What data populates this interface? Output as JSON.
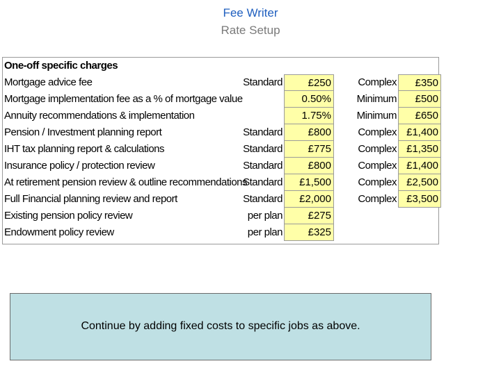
{
  "header": {
    "title": "Fee Writer",
    "subtitle": "Rate Setup"
  },
  "sheet": {
    "heading": "One-off specific charges",
    "rows": [
      {
        "label": "Mortgage advice fee",
        "type1": "Standard",
        "value1": "£250",
        "type2": "Complex",
        "value2": "£350"
      },
      {
        "label": "Mortgage implementation fee as a % of mortgage value",
        "type1": "",
        "value1": "0.50%",
        "type2": "Minimum",
        "value2": "£500"
      },
      {
        "label": "Annuity recommendations & implementation",
        "type1": "",
        "value1": "1.75%",
        "type2": "Minimum",
        "value2": "£650"
      },
      {
        "label": "Pension / Investment planning report",
        "type1": "Standard",
        "value1": "£800",
        "type2": "Complex",
        "value2": "£1,400"
      },
      {
        "label": "IHT tax planning report & calculations",
        "type1": "Standard",
        "value1": "£775",
        "type2": "Complex",
        "value2": "£1,350"
      },
      {
        "label": "Insurance policy / protection review",
        "type1": "Standard",
        "value1": "£800",
        "type2": "Complex",
        "value2": "£1,400"
      },
      {
        "label": "At retirement pension review & outline recommendations",
        "type1": "Standard",
        "value1": "£1,500",
        "type2": "Complex",
        "value2": "£2,500"
      },
      {
        "label": "Full Financial planning review and report",
        "type1": "Standard",
        "value1": "£2,000",
        "type2": "Complex",
        "value2": "£3,500"
      },
      {
        "label": "Existing pension policy review",
        "type1": "per plan",
        "value1": "£275",
        "type2": "",
        "value2": ""
      },
      {
        "label": "Endowment policy review",
        "type1": "per plan",
        "value1": "£325",
        "type2": "",
        "value2": ""
      }
    ]
  },
  "note": {
    "text": "Continue by adding fixed costs to specific jobs as above."
  },
  "colors": {
    "title": "#1f5fbf",
    "subtitle": "#7a7a7a",
    "input_cell": "#ffffa8",
    "note_bg": "#bfe0e4"
  }
}
